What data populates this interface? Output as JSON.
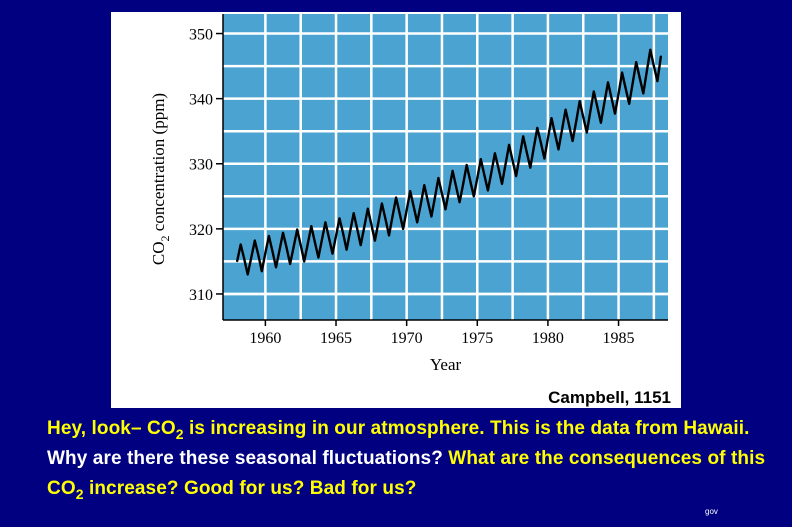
{
  "chart_data": {
    "type": "line",
    "xlabel": "Year",
    "ylabel_main": "CO",
    "ylabel_sub": "2",
    "ylabel_rest": " concentration (ppm)",
    "xlim": [
      1957,
      1988.5
    ],
    "ylim": [
      306,
      353
    ],
    "x_ticks": [
      1960,
      1965,
      1970,
      1975,
      1980,
      1985
    ],
    "y_ticks": [
      310,
      320,
      330,
      340,
      350
    ],
    "x_tick_labels": [
      "1960",
      "1965",
      "1970",
      "1975",
      "1980",
      "1985"
    ],
    "y_tick_labels": [
      "310",
      "320",
      "330",
      "340",
      "350"
    ],
    "grid": true,
    "plot_background": "#4aa3d0",
    "line_color": "#000000",
    "series": [
      {
        "x": [
          1958.0,
          1958.25,
          1958.5,
          1958.75,
          1959.0,
          1959.25,
          1959.5,
          1959.75,
          1960.0,
          1960.25,
          1960.5,
          1960.75,
          1961.0,
          1961.25,
          1961.5,
          1961.75,
          1962.0,
          1962.25,
          1962.5,
          1962.75,
          1963.0,
          1963.25,
          1963.5,
          1963.75,
          1964.0,
          1964.25,
          1964.5,
          1964.75,
          1965.0,
          1965.25,
          1965.5,
          1965.75,
          1966.0,
          1966.25,
          1966.5,
          1966.75,
          1967.0,
          1967.25,
          1967.5,
          1967.75,
          1968.0,
          1968.25,
          1968.5,
          1968.75,
          1969.0,
          1969.25,
          1969.5,
          1969.75,
          1970.0,
          1970.25,
          1970.5,
          1970.75,
          1971.0,
          1971.25,
          1971.5,
          1971.75,
          1972.0,
          1972.25,
          1972.5,
          1972.75,
          1973.0,
          1973.25,
          1973.5,
          1973.75,
          1974.0,
          1974.25,
          1974.5,
          1974.75,
          1975.0,
          1975.25,
          1975.5,
          1975.75,
          1976.0,
          1976.25,
          1976.5,
          1976.75,
          1977.0,
          1977.25,
          1977.5,
          1977.75,
          1978.0,
          1978.25,
          1978.5,
          1978.75,
          1979.0,
          1979.25,
          1979.5,
          1979.75,
          1980.0,
          1980.25,
          1980.5,
          1980.75,
          1981.0,
          1981.25,
          1981.5,
          1981.75,
          1982.0,
          1982.25,
          1982.5,
          1982.75,
          1983.0,
          1983.25,
          1983.5,
          1983.75,
          1984.0,
          1984.25,
          1984.5,
          1984.75,
          1985.0,
          1985.25,
          1985.5,
          1985.75,
          1986.0,
          1986.25,
          1986.5,
          1986.75,
          1987.0,
          1987.25,
          1987.5,
          1987.75,
          1988.0
        ],
        "y": [
          315.0,
          317.6,
          315.4,
          313.0,
          315.6,
          318.2,
          316.0,
          313.5,
          316.3,
          318.9,
          316.6,
          314.1,
          316.7,
          319.4,
          317.1,
          314.6,
          317.2,
          319.9,
          317.5,
          315.0,
          317.7,
          320.4,
          318.0,
          315.6,
          318.3,
          321.0,
          318.6,
          316.2,
          318.9,
          321.6,
          319.3,
          316.8,
          319.6,
          322.4,
          320.0,
          317.5,
          320.3,
          323.1,
          320.7,
          318.2,
          321.0,
          323.9,
          321.5,
          319.0,
          321.9,
          324.8,
          322.4,
          320.0,
          322.9,
          325.8,
          323.4,
          321.0,
          323.8,
          326.7,
          324.3,
          321.9,
          324.8,
          327.8,
          325.4,
          323.0,
          325.9,
          328.9,
          326.5,
          324.1,
          326.9,
          329.8,
          327.4,
          325.0,
          327.8,
          330.7,
          328.3,
          325.9,
          328.7,
          331.6,
          329.3,
          326.9,
          329.9,
          332.9,
          330.5,
          328.1,
          331.2,
          334.2,
          331.8,
          329.4,
          332.5,
          335.5,
          333.2,
          330.8,
          333.9,
          337.0,
          334.6,
          332.2,
          335.2,
          338.3,
          335.9,
          333.5,
          336.5,
          339.6,
          337.2,
          334.8,
          338.0,
          341.1,
          338.7,
          336.3,
          339.4,
          342.5,
          340.1,
          337.7,
          340.8,
          344.0,
          341.6,
          339.2,
          342.4,
          345.6,
          343.2,
          340.8,
          344.2,
          347.5,
          345.0,
          342.7,
          346.5
        ]
      }
    ]
  },
  "credit": "Campbell, 1151",
  "caption": {
    "p1": "Hey, look– CO",
    "p1_sub": "2",
    "p2": " is increasing in our atmosphere. This is the data from Hawaii.",
    "p3": " Why are there these seasonal fluctuations?",
    "p4": " What are the consequences of this CO",
    "p4_sub": "2",
    "p5": " increase? Good for us? Bad for us?"
  },
  "footer_mark": "gov",
  "colors": {
    "background": "#000080",
    "caption_yellow": "#ffff00",
    "caption_white": "#ffffff"
  }
}
